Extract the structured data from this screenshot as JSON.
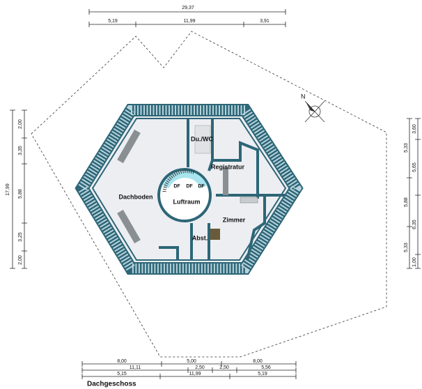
{
  "title": "Dachgeschoss",
  "compass": "N",
  "rooms": [
    "Du./WC",
    "Registratur",
    "Dachboden",
    "Luftraum",
    "Zimmer",
    "Abst.",
    "DF",
    "DF",
    "DF"
  ],
  "dimensions": {
    "top": {
      "total": "29,37",
      "parts": [
        "5,19",
        "11,99",
        "3,91"
      ]
    },
    "left": {
      "total": "17,99",
      "parts": [
        "2,00",
        "3,35",
        "5,88",
        "3,25",
        "2,00"
      ]
    },
    "right": {
      "inner": [
        "5,33",
        "5,88",
        "5,33"
      ],
      "outer": [
        "3,60",
        "5,65",
        "6,35",
        "1,00"
      ]
    },
    "bottom": {
      "row1": [
        "8,00",
        "5,00",
        "8,00"
      ],
      "row2": [
        "11,11",
        "2,50",
        "2,50",
        "5,56"
      ],
      "row3": [
        "5,15",
        "11,99",
        "5,19"
      ]
    }
  }
}
